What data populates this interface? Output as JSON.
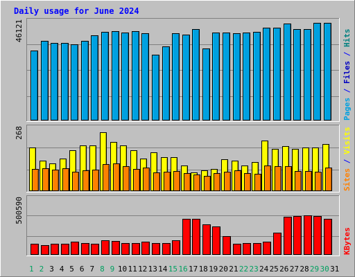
{
  "chart_data": [
    {
      "type": "bar",
      "title": "Daily usage for June 2024",
      "ylabel_parts": [
        {
          "text": "Pages",
          "color": "#00a0e0"
        },
        {
          "text": " / ",
          "color": "#0000ff"
        },
        {
          "text": "Files",
          "color": "#0000c0"
        },
        {
          "text": " / ",
          "color": "#0000ff"
        },
        {
          "text": "Hits",
          "color": "#008080"
        }
      ],
      "ymax_label": "46121",
      "ylim": [
        0,
        46121
      ],
      "categories": [
        "1",
        "2",
        "3",
        "4",
        "5",
        "6",
        "7",
        "8",
        "9",
        "10",
        "11",
        "12",
        "13",
        "14",
        "15",
        "16",
        "17",
        "18",
        "19",
        "20",
        "21",
        "22",
        "23",
        "24",
        "25",
        "26",
        "27",
        "28",
        "29",
        "30",
        "31"
      ],
      "weekend_days": [
        "1",
        "2",
        "8",
        "9",
        "15",
        "16",
        "22",
        "23",
        "29",
        "30"
      ],
      "series": [
        {
          "name": "Hits",
          "color": "#00c060",
          "values": [
            0,
            0,
            0,
            0,
            0,
            0,
            0,
            0,
            0,
            0,
            0,
            0,
            0,
            0,
            0,
            0,
            0,
            0,
            0,
            0,
            0,
            0,
            0,
            0,
            0,
            0,
            0,
            0,
            0,
            0,
            0
          ]
        },
        {
          "name": "Files",
          "color": "#0080ff",
          "values": [
            0,
            0,
            0,
            0,
            0,
            0,
            0,
            0,
            0,
            0,
            0,
            0,
            0,
            0,
            0,
            0,
            0,
            0,
            0,
            0,
            0,
            0,
            0,
            0,
            0,
            0,
            0,
            0,
            0,
            0,
            0
          ]
        },
        {
          "name": "Pages",
          "color": "#00a0e0",
          "values": [
            32000,
            36500,
            35500,
            35500,
            35000,
            36500,
            39000,
            40700,
            41000,
            40300,
            41000,
            40000,
            30000,
            34000,
            40000,
            39500,
            42000,
            33000,
            40300,
            40300,
            40000,
            40300,
            40600,
            42600,
            42600,
            44500,
            41800,
            42000,
            44800,
            44800,
            0
          ]
        }
      ]
    },
    {
      "type": "bar",
      "ylabel_parts": [
        {
          "text": "Sites",
          "color": "#ff8000"
        },
        {
          "text": " / ",
          "color": "#0000ff"
        },
        {
          "text": "Visits",
          "color": "#ffff00"
        }
      ],
      "ymax_label": "268",
      "ylim": [
        0,
        268
      ],
      "categories": [
        "1",
        "2",
        "3",
        "4",
        "5",
        "6",
        "7",
        "8",
        "9",
        "10",
        "11",
        "12",
        "13",
        "14",
        "15",
        "16",
        "17",
        "18",
        "19",
        "20",
        "21",
        "22",
        "23",
        "24",
        "25",
        "26",
        "27",
        "28",
        "29",
        "30",
        "31"
      ],
      "series": [
        {
          "name": "Visits",
          "color": "#ffff00",
          "values": [
            180,
            125,
            115,
            135,
            170,
            190,
            190,
            245,
            205,
            190,
            170,
            135,
            160,
            140,
            140,
            105,
            75,
            85,
            90,
            130,
            125,
            105,
            120,
            210,
            175,
            185,
            175,
            180,
            180,
            195,
            0
          ]
        },
        {
          "name": "Sites",
          "color": "#ff8000",
          "values": [
            90,
            92,
            87,
            92,
            80,
            85,
            86,
            112,
            115,
            103,
            90,
            95,
            75,
            80,
            82,
            72,
            68,
            62,
            72,
            80,
            85,
            72,
            70,
            104,
            103,
            102,
            83,
            82,
            80,
            97,
            0
          ]
        }
      ]
    },
    {
      "type": "bar",
      "ylabel_parts": [
        {
          "text": "KBytes",
          "color": "#ff0000"
        }
      ],
      "ymax_label": "500590",
      "ylim": [
        0,
        500590
      ],
      "categories": [
        "1",
        "2",
        "3",
        "4",
        "5",
        "6",
        "7",
        "8",
        "9",
        "10",
        "11",
        "12",
        "13",
        "14",
        "15",
        "16",
        "17",
        "18",
        "19",
        "20",
        "21",
        "22",
        "23",
        "24",
        "25",
        "26",
        "27",
        "28",
        "29",
        "30",
        "31"
      ],
      "series": [
        {
          "name": "KBytes",
          "color": "#ff0000",
          "values": [
            90000,
            82000,
            90000,
            90000,
            110000,
            100000,
            90000,
            120000,
            115000,
            100000,
            100000,
            110000,
            100000,
            95000,
            120000,
            310000,
            310000,
            265000,
            245000,
            160000,
            90000,
            95000,
            95000,
            112000,
            190000,
            330000,
            335000,
            340000,
            333000,
            310000,
            0
          ]
        }
      ]
    }
  ]
}
